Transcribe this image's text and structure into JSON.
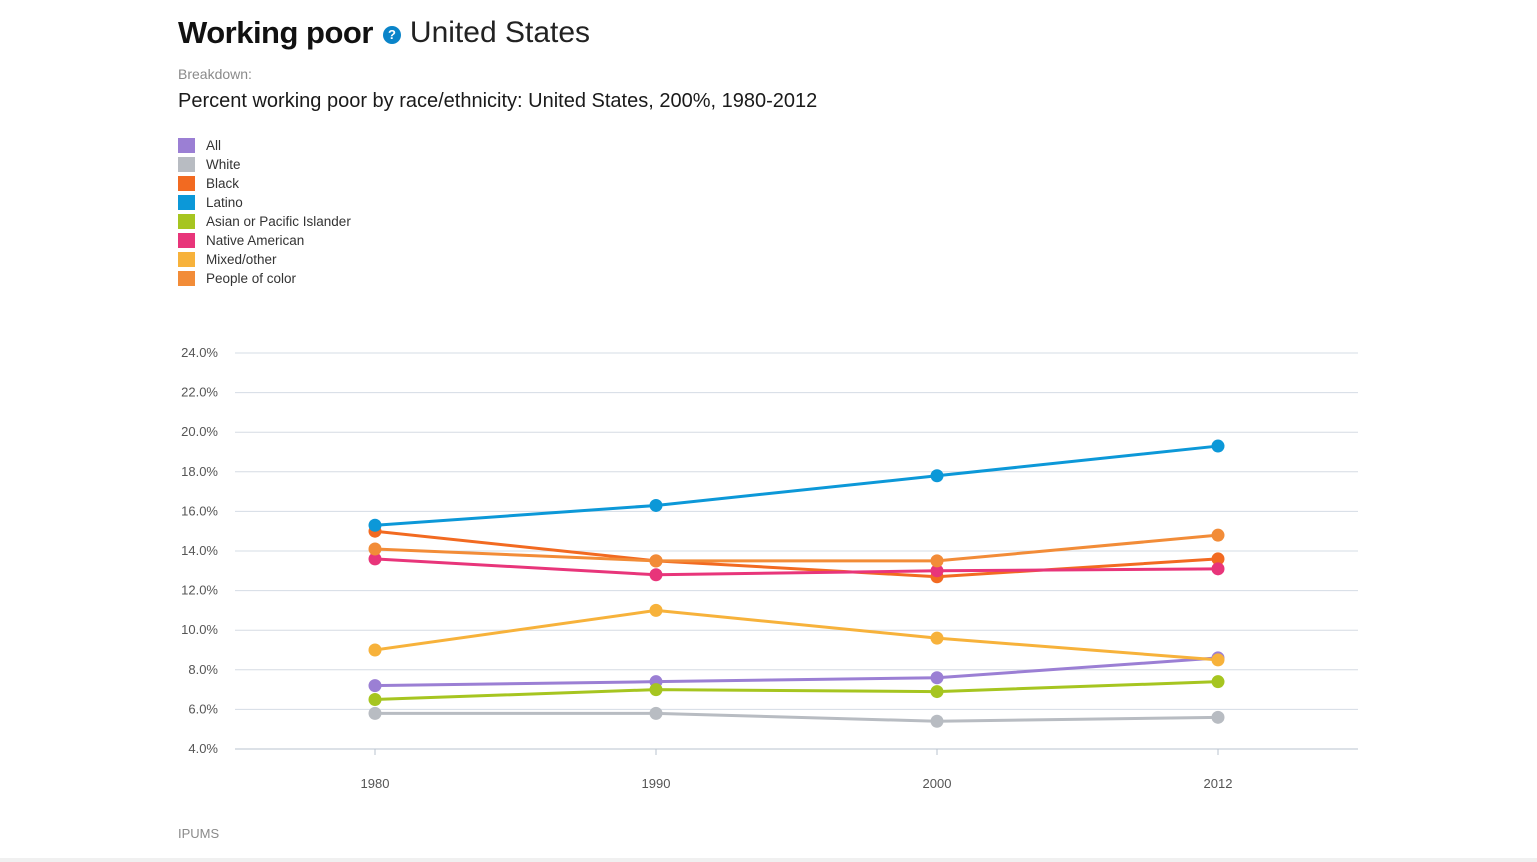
{
  "header": {
    "title": "Working poor",
    "help_icon": "?",
    "place": "United States",
    "breakdown_label": "Breakdown:",
    "subtitle": "Percent working poor by race/ethnicity: United States, 200%, 1980-2012"
  },
  "legend": {
    "items": [
      {
        "label": "All",
        "color": "#9b7fd4"
      },
      {
        "label": "White",
        "color": "#b8bcc2"
      },
      {
        "label": "Black",
        "color": "#f26a21"
      },
      {
        "label": "Latino",
        "color": "#0c98d8"
      },
      {
        "label": "Asian or Pacific Islander",
        "color": "#a6c520"
      },
      {
        "label": "Native American",
        "color": "#e8357a"
      },
      {
        "label": "Mixed/other",
        "color": "#f7b23b"
      },
      {
        "label": "People of color",
        "color": "#f28c38"
      }
    ]
  },
  "source": "IPUMS",
  "chart_data": {
    "type": "line",
    "title": "Percent working poor by race/ethnicity: United States, 200%, 1980-2012",
    "categories": [
      "1980",
      "1990",
      "2000",
      "2012"
    ],
    "ylim": [
      4.0,
      24.0
    ],
    "yticks": [
      4.0,
      6.0,
      8.0,
      10.0,
      12.0,
      14.0,
      16.0,
      18.0,
      20.0,
      22.0,
      24.0
    ],
    "ytick_labels": [
      "4.0%",
      "6.0%",
      "8.0%",
      "10.0%",
      "12.0%",
      "14.0%",
      "16.0%",
      "18.0%",
      "20.0%",
      "22.0%",
      "24.0%"
    ],
    "grid": true,
    "legend_position": "top-left",
    "series": [
      {
        "name": "All",
        "color": "#9b7fd4",
        "values": [
          7.2,
          7.4,
          7.6,
          8.6
        ]
      },
      {
        "name": "White",
        "color": "#b8bcc2",
        "values": [
          5.8,
          5.8,
          5.4,
          5.6
        ]
      },
      {
        "name": "Black",
        "color": "#f26a21",
        "values": [
          15.0,
          13.5,
          12.7,
          13.6
        ]
      },
      {
        "name": "Latino",
        "color": "#0c98d8",
        "values": [
          15.3,
          16.3,
          17.8,
          19.3
        ]
      },
      {
        "name": "Asian or Pacific Islander",
        "color": "#a6c520",
        "values": [
          6.5,
          7.0,
          6.9,
          7.4
        ]
      },
      {
        "name": "Native American",
        "color": "#e8357a",
        "values": [
          13.6,
          12.8,
          13.0,
          13.1
        ]
      },
      {
        "name": "Mixed/other",
        "color": "#f7b23b",
        "values": [
          9.0,
          11.0,
          9.6,
          8.5
        ]
      },
      {
        "name": "People of color",
        "color": "#f28c38",
        "values": [
          14.1,
          13.5,
          13.5,
          14.8
        ]
      }
    ]
  }
}
